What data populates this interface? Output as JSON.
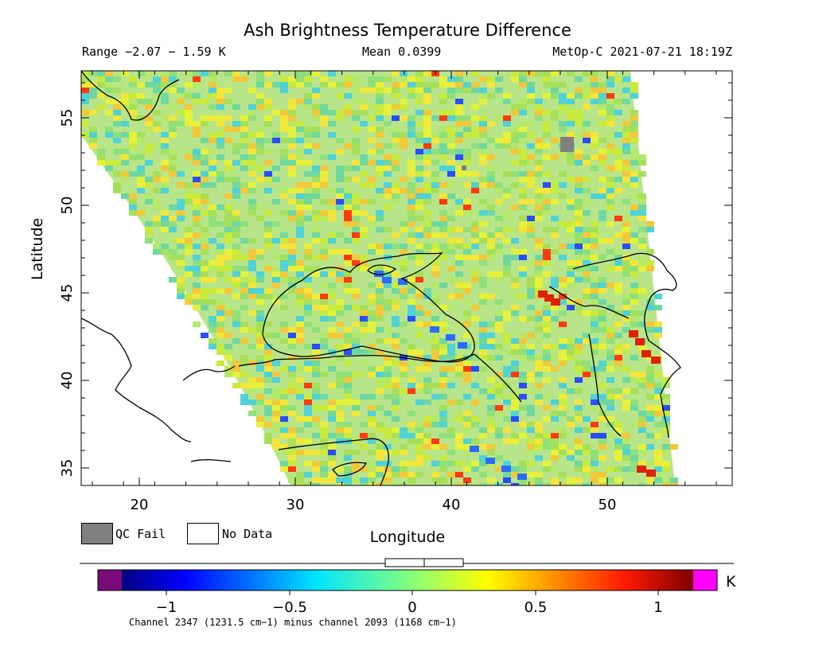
{
  "title": "Ash Brightness Temperature Difference",
  "header": {
    "range": "Range −2.07 − 1.59 K",
    "mean": "Mean 0.0399",
    "satellite": "MetOp-C 2021-07-21 18:19Z"
  },
  "axes": {
    "ylabel": "Latitude",
    "xlabel": "Longitude",
    "xticks": [
      "20",
      "30",
      "40",
      "50"
    ],
    "yticks": [
      "55",
      "50",
      "45",
      "40",
      "35"
    ]
  },
  "legend": {
    "qc_fail": "QC Fail",
    "no_data": "No Data",
    "qc_color": "#808080",
    "nodata_color": "#ffffff"
  },
  "colorbar": {
    "ticks": [
      "−1",
      "−0.5",
      "0",
      "0.5",
      "1"
    ],
    "unit": "K",
    "low_color": "#7a0a7a",
    "high_color": "#ff00ff"
  },
  "caption": "Channel 2347 (1231.5 cm−1) minus channel 2093 (1168 cm−1)"
}
